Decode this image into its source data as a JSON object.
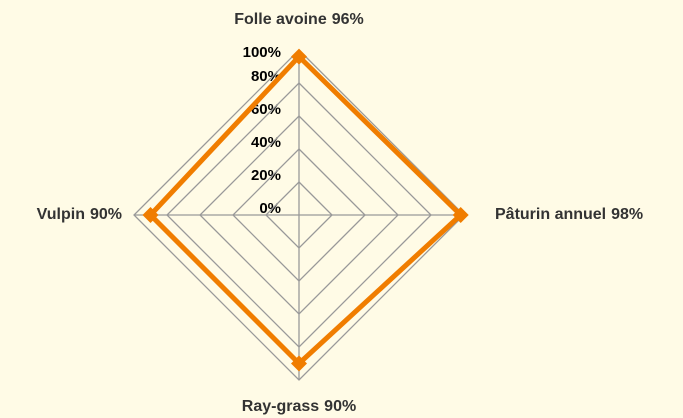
{
  "chart_data": {
    "type": "radar",
    "categories": [
      "Folle avoine",
      "Pâturin annuel",
      "Ray-grass",
      "Vulpin"
    ],
    "values": [
      96,
      98,
      90,
      90
    ],
    "value_labels": [
      "96%",
      "98%",
      "90%",
      "90%"
    ],
    "color": "#f07d00",
    "ylim": [
      0,
      100
    ],
    "yticks": [
      {
        "value": 0,
        "label": "0%"
      },
      {
        "value": 20,
        "label": "20%"
      },
      {
        "value": 40,
        "label": "40%"
      },
      {
        "value": 60,
        "label": "60%"
      },
      {
        "value": 80,
        "label": "80%"
      },
      {
        "value": 100,
        "label": "100%"
      }
    ],
    "grid": true
  }
}
